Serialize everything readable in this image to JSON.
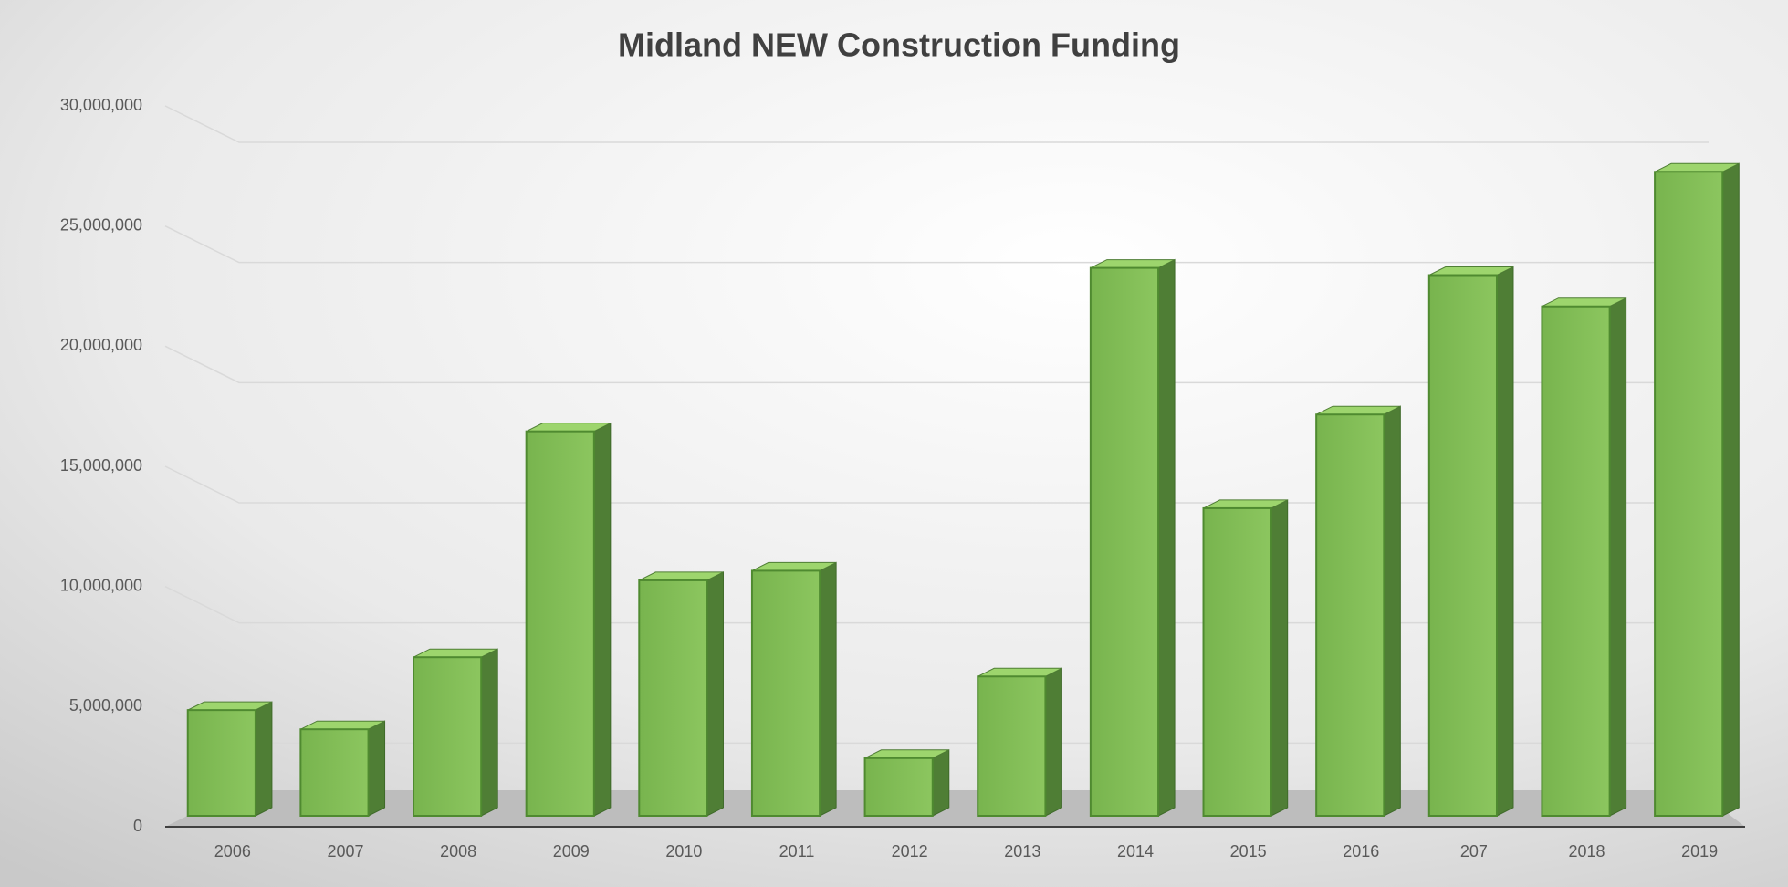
{
  "chart_data": {
    "type": "bar",
    "title": "Midland NEW Construction Funding",
    "categories": [
      "2006",
      "2007",
      "2008",
      "2009",
      "2010",
      "2011",
      "2012",
      "2013",
      "2014",
      "2015",
      "2016",
      "207",
      "2018",
      "2019"
    ],
    "values": [
      4400000,
      3600000,
      6600000,
      16000000,
      9800000,
      10200000,
      2400000,
      5800000,
      22800000,
      12800000,
      16700000,
      22500000,
      21200000,
      26800000
    ],
    "color": "#7cb852",
    "ylim": [
      0,
      30000000
    ],
    "yticks": [
      0,
      {
        "value": 5000000,
        "label": "5,000,000"
      },
      {
        "value": 10000000,
        "label": "10,000,000"
      },
      {
        "value": 15000000,
        "label": "15,000,000"
      },
      {
        "value": 20000000,
        "label": "20,000,000"
      },
      {
        "value": 25000000,
        "label": "25,000,000"
      },
      {
        "value": 30000000,
        "label": "30,000,000"
      }
    ],
    "grid": true
  }
}
